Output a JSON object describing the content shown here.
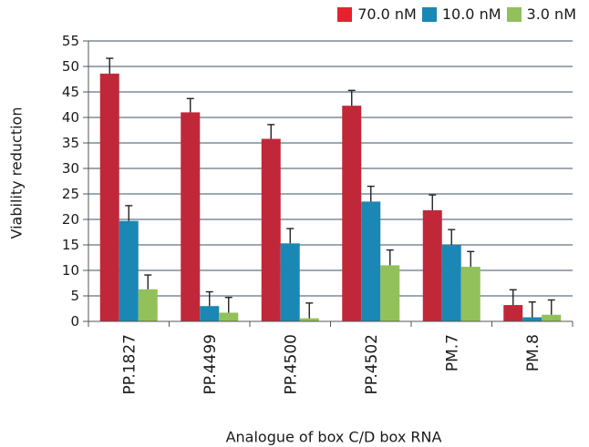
{
  "chart_data": {
    "type": "bar",
    "title": "",
    "xlabel": "Analogue of box C/D box RNA",
    "ylabel": "Viability reduction",
    "ylim": [
      0,
      55
    ],
    "yticks": [
      0,
      5,
      10,
      15,
      20,
      25,
      30,
      35,
      40,
      45,
      50,
      55
    ],
    "grid": "horizontal",
    "legend_position": "top-right",
    "categories": [
      "PP.1827",
      "PP.4499",
      "PP.4500",
      "PP.4502",
      "PM.7",
      "PM.8"
    ],
    "series": [
      {
        "name": "70.0 nM",
        "color": "#c0283a",
        "values": [
          48.6,
          41.0,
          35.8,
          42.3,
          21.8,
          3.2
        ],
        "errors": [
          3.0,
          2.7,
          2.8,
          3.0,
          3.0,
          3.0
        ]
      },
      {
        "name": "10.0 nM",
        "color": "#1b87b5",
        "values": [
          19.7,
          3.0,
          15.3,
          23.5,
          15.0,
          0.8
        ],
        "errors": [
          3.0,
          2.8,
          2.9,
          3.0,
          3.0,
          3.0
        ]
      },
      {
        "name": "3.0 nM",
        "color": "#92c05a",
        "values": [
          6.3,
          1.7,
          0.6,
          11.0,
          10.7,
          1.3
        ],
        "errors": [
          2.8,
          3.0,
          3.0,
          3.0,
          3.0,
          2.9
        ]
      }
    ]
  }
}
